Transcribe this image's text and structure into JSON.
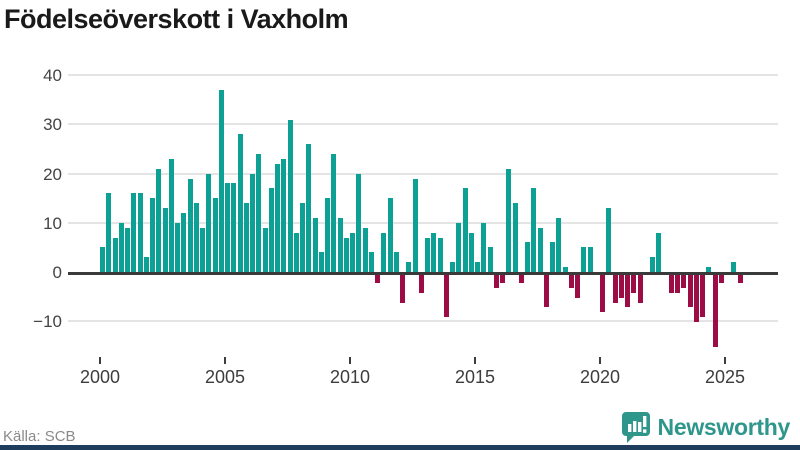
{
  "header": {
    "title": "Födelseöverskott i Vaxholm"
  },
  "footer": {
    "source": "Källa: SCB",
    "brand": "Newsworthy"
  },
  "colors": {
    "positive": "#0CA194",
    "negative": "#9C0D45",
    "brand_teal": "#2F968B",
    "bottom_bar": "#1E3C5C",
    "grid": "#e4e4e4",
    "axis": "#3a3a3a"
  },
  "chart_data": {
    "type": "bar",
    "title": "Födelseöverskott i Vaxholm",
    "frequency": "quarterly",
    "start_year": 2000,
    "start_quarter": 1,
    "x_ticks": [
      "2000",
      "2005",
      "2010",
      "2015",
      "2020",
      "2025"
    ],
    "y_ticks": [
      40,
      30,
      20,
      10,
      0,
      -10
    ],
    "ylim": [
      -16,
      42
    ],
    "grid": true,
    "legend": "none",
    "positive_color": "#0CA194",
    "negative_color": "#9C0D45",
    "values": [
      5,
      16,
      7,
      10,
      9,
      16,
      16,
      3,
      15,
      21,
      13,
      23,
      10,
      12,
      19,
      14,
      9,
      20,
      15,
      37,
      18,
      18,
      28,
      14,
      20,
      24,
      9,
      17,
      22,
      23,
      31,
      8,
      14,
      26,
      11,
      4,
      15,
      24,
      11,
      7,
      8,
      20,
      9,
      4,
      -2,
      8,
      15,
      4,
      -6,
      2,
      19,
      -4,
      7,
      8,
      7,
      -9,
      2,
      10,
      17,
      8,
      2,
      10,
      5,
      -3,
      -2,
      21,
      14,
      -2,
      6,
      17,
      9,
      -7,
      6,
      11,
      1,
      -3,
      -5,
      5,
      5,
      0,
      -8,
      13,
      -6,
      -5,
      -7,
      -4,
      -6,
      0,
      3,
      8,
      0,
      -4,
      -4,
      -3,
      -7,
      -10,
      -9,
      1,
      -15,
      -2,
      0,
      2,
      -2
    ]
  }
}
